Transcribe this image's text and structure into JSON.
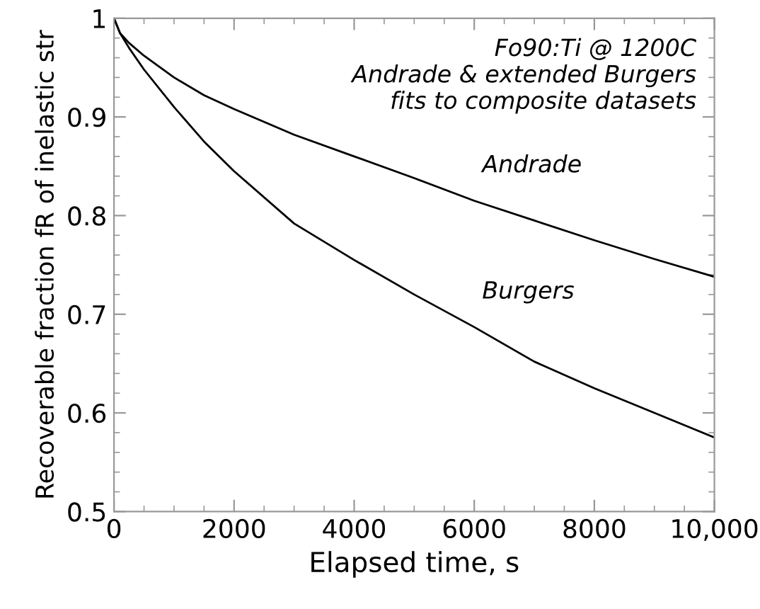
{
  "chart_data": {
    "type": "line",
    "xlabel": "Elapsed time, s",
    "ylabel": "Recoverable fraction fR of inelastic str",
    "xlim": [
      0,
      10000
    ],
    "ylim": [
      0.5,
      1
    ],
    "xticks": [
      0,
      2000,
      4000,
      6000,
      8000,
      {
        "value": 10000,
        "label": "10,000"
      }
    ],
    "yticks": [
      0.5,
      0.6,
      0.7,
      0.8,
      0.9,
      1
    ],
    "grid": false,
    "marker": "none",
    "line_style": "solid",
    "series": [
      {
        "name": "Andrade",
        "color": "#000000",
        "x": [
          0,
          100,
          250,
          500,
          1000,
          1500,
          2000,
          3000,
          4000,
          5000,
          6000,
          7000,
          8000,
          9000,
          10000
        ],
        "values": [
          1,
          0.985,
          0.975,
          0.962,
          0.94,
          0.922,
          0.908,
          0.882,
          0.86,
          0.838,
          0.815,
          0.795,
          0.775,
          0.756,
          0.738
        ]
      },
      {
        "name": "Burgers",
        "color": "#000000",
        "x": [
          0,
          100,
          250,
          500,
          1000,
          1500,
          2000,
          3000,
          4000,
          5000,
          6000,
          7000,
          8000,
          9000,
          10000
        ],
        "values": [
          1,
          0.985,
          0.97,
          0.948,
          0.91,
          0.875,
          0.845,
          0.792,
          0.755,
          0.72,
          0.687,
          0.652,
          0.625,
          0.6,
          0.575
        ]
      }
    ],
    "annotations": [
      "Fo90:Ti @ 1200C\nAndrade & extended Burgers\nfits to composite datasets"
    ]
  }
}
